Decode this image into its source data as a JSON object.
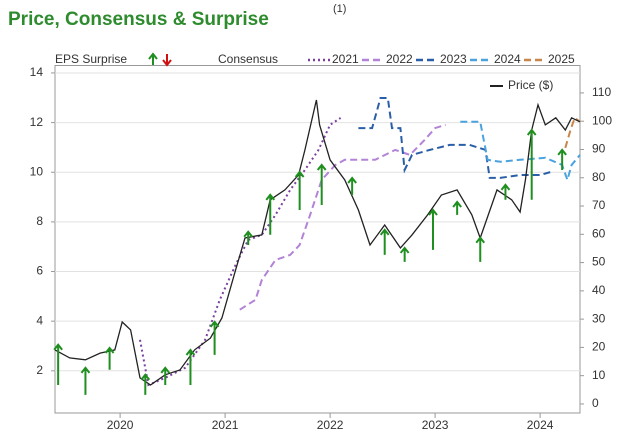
{
  "chart_data": {
    "type": "line",
    "title": "Price, Consensus & Surprise",
    "title_note": "(1)",
    "eps_legend": "EPS Surprise",
    "consensus_legend": "Consensus",
    "xlim": [
      2019.38,
      2024.38
    ],
    "xticks": [
      2020,
      2021,
      2022,
      2023,
      2024
    ],
    "ylim": [
      0.3,
      14.3
    ],
    "yticks": [
      2,
      4,
      6,
      8,
      10,
      12,
      14
    ],
    "y2lim": [
      -3.2,
      119.7
    ],
    "y2ticks": [
      0,
      10,
      20,
      30,
      40,
      50,
      60,
      70,
      80,
      90,
      100,
      110
    ],
    "grid": true,
    "series": [
      {
        "name": "2021",
        "color": "#7b3fa0",
        "dash": "dotted",
        "x": [
          2020.19,
          2020.27,
          2020.43,
          2020.62,
          2020.81,
          2020.95,
          2021.1,
          2021.22,
          2021.35,
          2021.48,
          2021.62,
          2021.76,
          2021.89,
          2022.0,
          2022.1
        ],
        "values": [
          3.25,
          1.43,
          1.72,
          2.12,
          3.25,
          4.86,
          6.27,
          7.27,
          7.48,
          8.28,
          9.29,
          10.09,
          10.9,
          11.91,
          12.19
        ]
      },
      {
        "name": "2022",
        "color": "#b283d6",
        "dash": "dashed",
        "x": [
          2021.14,
          2021.29,
          2021.35,
          2021.48,
          2021.62,
          2021.71,
          2021.81,
          2021.92,
          2022.05,
          2022.14,
          2022.29,
          2022.43,
          2022.62,
          2022.76,
          2022.9,
          2023.0,
          2023.1
        ],
        "values": [
          4.46,
          4.86,
          5.66,
          6.47,
          6.67,
          7.07,
          8.28,
          9.69,
          10.29,
          10.5,
          10.5,
          10.5,
          10.9,
          10.7,
          11.3,
          11.78,
          11.91
        ]
      },
      {
        "name": "2023",
        "color": "#2a5fa8",
        "dash": "dashed",
        "x": [
          2022.27,
          2022.4,
          2022.48,
          2022.55,
          2022.59,
          2022.67,
          2022.71,
          2022.78,
          2022.95,
          2023.14,
          2023.33,
          2023.48,
          2023.52,
          2023.62,
          2023.81,
          2024.0,
          2024.1
        ],
        "values": [
          11.78,
          11.78,
          12.99,
          12.99,
          11.78,
          11.78,
          10.09,
          10.7,
          10.9,
          11.1,
          11.1,
          10.9,
          9.77,
          9.77,
          9.89,
          9.89,
          10.01
        ]
      },
      {
        "name": "2024",
        "color": "#4aa3df",
        "dash": "dashed",
        "x": [
          2023.24,
          2023.43,
          2023.5,
          2023.62,
          2023.81,
          2024.05,
          2024.14,
          2024.21,
          2024.26,
          2024.3,
          2024.38
        ],
        "values": [
          12.03,
          12.03,
          10.5,
          10.42,
          10.5,
          10.58,
          10.42,
          10.29,
          9.69,
          10.29,
          10.7
        ]
      },
      {
        "name": "2025",
        "color": "#c8864a",
        "dash": "dashed",
        "x": [
          2024.24,
          2024.29,
          2024.33,
          2024.38
        ],
        "values": [
          10.98,
          11.7,
          12.19,
          12.03
        ]
      },
      {
        "name": "Price ($)",
        "color": "#222222",
        "dash": "solid",
        "axis": "y2",
        "x": [
          2019.38,
          2019.52,
          2019.67,
          2019.81,
          2019.95,
          2020.02,
          2020.1,
          2020.19,
          2020.29,
          2020.43,
          2020.57,
          2020.71,
          2020.86,
          2020.97,
          2021.1,
          2021.19,
          2021.35,
          2021.43,
          2021.57,
          2021.7,
          2021.76,
          2021.87,
          2021.9,
          2022.0,
          2022.14,
          2022.27,
          2022.38,
          2022.52,
          2022.67,
          2022.78,
          2022.93,
          2023.06,
          2023.21,
          2023.35,
          2023.43,
          2023.59,
          2023.73,
          2023.81,
          2023.86,
          2023.92,
          2023.98,
          2024.05,
          2024.15,
          2024.24,
          2024.3,
          2024.38
        ],
        "values": [
          19.1,
          16.3,
          15.6,
          18.0,
          19.1,
          29.0,
          26.2,
          9.2,
          6.7,
          10.3,
          12.0,
          19.1,
          23.3,
          30.4,
          47.4,
          58.7,
          59.8,
          72.2,
          75.7,
          81.0,
          89.8,
          107.5,
          98.7,
          86.3,
          79.2,
          68.6,
          56.2,
          63.3,
          55.2,
          59.8,
          66.9,
          73.9,
          75.7,
          66.9,
          58.7,
          75.7,
          72.2,
          67.9,
          79.2,
          96.9,
          105.8,
          98.7,
          101.2,
          96.9,
          101.2,
          99.8
        ]
      }
    ],
    "surprise_color": "#1f8f1f",
    "surprises": {
      "x": [
        2019.41,
        2019.67,
        2019.9,
        2020.24,
        2020.43,
        2020.67,
        2020.9,
        2021.22,
        2021.43,
        2021.71,
        2021.92,
        2022.21,
        2022.52,
        2022.71,
        2022.98,
        2023.21,
        2023.43,
        2023.67,
        2023.92,
        2024.21
      ],
      "start": [
        1.43,
        1.03,
        2.04,
        1.03,
        1.43,
        1.43,
        2.64,
        7.07,
        7.48,
        8.48,
        8.68,
        9.09,
        6.67,
        6.39,
        6.87,
        8.28,
        6.39,
        8.89,
        8.89,
        10.09
      ],
      "end": [
        3.05,
        2.12,
        2.92,
        1.84,
        2.12,
        2.84,
        3.97,
        7.6,
        9.09,
        10.01,
        10.29,
        9.77,
        7.68,
        6.95,
        8.48,
        8.8,
        7.36,
        9.49,
        11.7,
        10.9
      ]
    }
  }
}
